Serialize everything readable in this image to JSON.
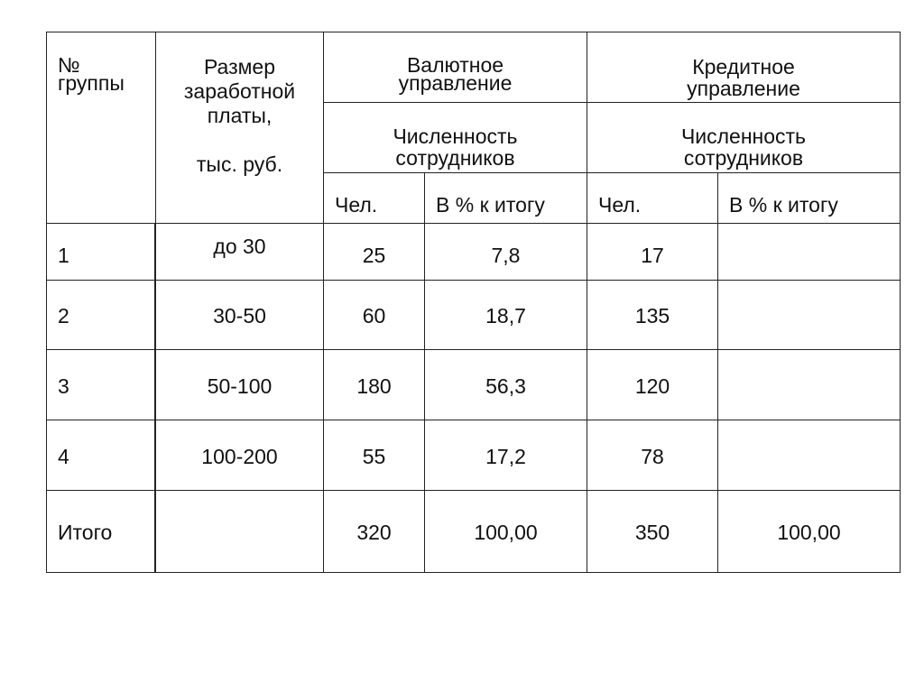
{
  "header": {
    "group_no": "№\nгруппы",
    "salary": "Размер\nзаработной\nплаты,",
    "salary_unit": "тыс. руб.",
    "dept1": "Валютное\nуправление",
    "dept2": "Кредитное\nуправление",
    "headcount1": "Численность\nсотрудников",
    "headcount2": "Численность\nсотрудников",
    "people1": "Чел.",
    "pct1": "В % к итогу",
    "people2": "Чел.",
    "pct2": "В % к итогу"
  },
  "rows": [
    {
      "group": "1",
      "salary": "до 30",
      "v_people": "25",
      "v_pct": "7,8",
      "k_people": "17",
      "k_pct": ""
    },
    {
      "group": "2",
      "salary": "30-50",
      "v_people": "60",
      "v_pct": "18,7",
      "k_people": "135",
      "k_pct": ""
    },
    {
      "group": "3",
      "salary": "50-100",
      "v_people": "180",
      "v_pct": "56,3",
      "k_people": "120",
      "k_pct": ""
    },
    {
      "group": "4",
      "salary": "100-200",
      "v_people": "55",
      "v_pct": "17,2",
      "k_people": "78",
      "k_pct": ""
    },
    {
      "group": "Итого",
      "salary": "",
      "v_people": "320",
      "v_pct": "100,00",
      "k_people": "350",
      "k_pct": "100,00"
    }
  ]
}
